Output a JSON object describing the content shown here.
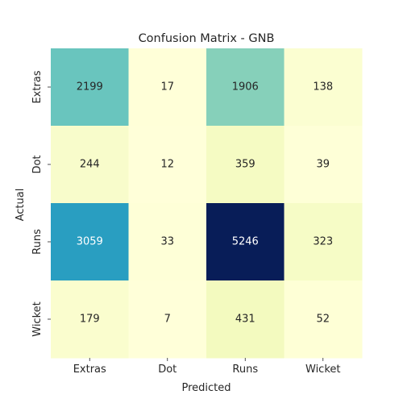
{
  "chart_data": {
    "type": "heatmap",
    "title": "Confusion Matrix - GNB",
    "xlabel": "Predicted",
    "ylabel": "Actual",
    "x_categories": [
      "Extras",
      "Dot",
      "Runs",
      "Wicket"
    ],
    "y_categories": [
      "Extras",
      "Dot",
      "Runs",
      "Wicket"
    ],
    "values": [
      [
        2199,
        17,
        1906,
        138
      ],
      [
        244,
        12,
        359,
        39
      ],
      [
        3059,
        33,
        5246,
        323
      ],
      [
        179,
        7,
        431,
        52
      ]
    ],
    "colormap": "YlGnBu",
    "colorbar": false,
    "grid": false
  }
}
